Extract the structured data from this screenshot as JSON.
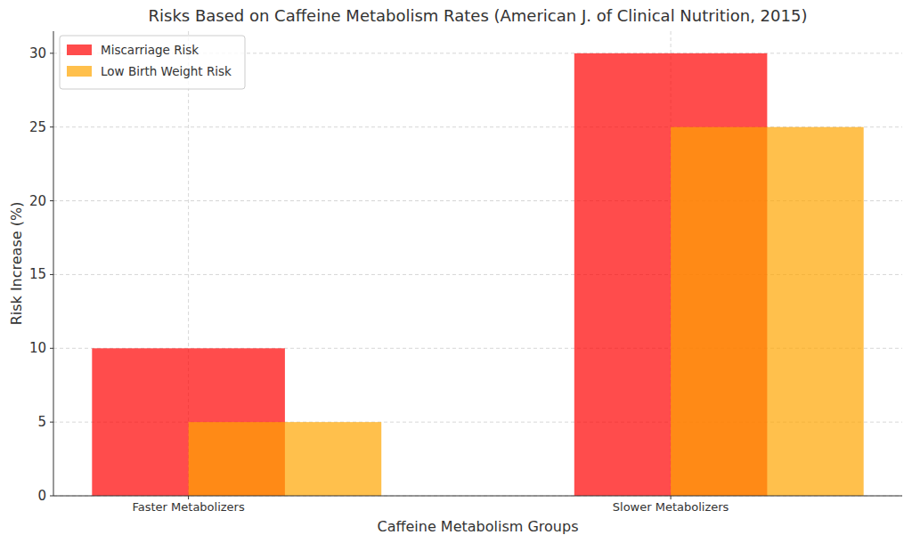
{
  "chart_data": {
    "type": "bar",
    "title": "Risks Based on Caffeine Metabolism Rates (American J. of Clinical Nutrition, 2015)",
    "x_label": "Caffeine Metabolism Groups",
    "y_label": "Risk Increase (%)",
    "categories": [
      "Faster Metabolizers",
      "Slower Metabolizers"
    ],
    "series": [
      {
        "name": "Miscarriage Risk",
        "color": "#ff0000",
        "values": [
          10,
          30
        ]
      },
      {
        "name": "Low Birth Weight Risk",
        "color": "#ffa500",
        "values": [
          5,
          25
        ]
      }
    ],
    "ylim": [
      0,
      31.5
    ],
    "yticks": [
      0,
      5,
      10,
      15,
      20,
      25,
      30
    ],
    "grid": true,
    "legend": "upper-left"
  }
}
